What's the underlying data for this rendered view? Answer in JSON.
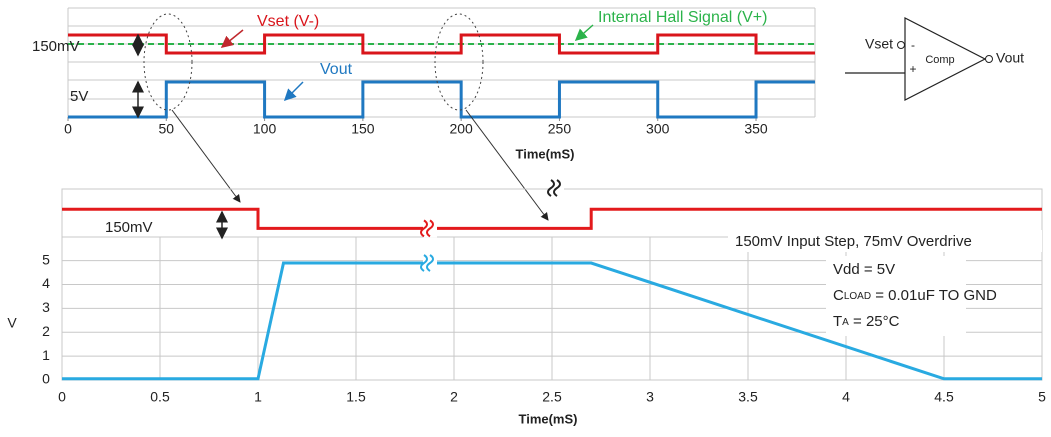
{
  "chart_data": [
    {
      "type": "step",
      "x_label": "Time(mS)",
      "x": [
        0,
        50,
        50,
        100,
        100,
        150,
        150,
        200,
        200,
        250,
        250,
        300,
        300,
        350,
        350,
        380
      ],
      "xlim": [
        0,
        380
      ],
      "xticks": [
        0,
        50,
        100,
        150,
        200,
        250,
        300,
        350
      ],
      "series": [
        {
          "name": "Vset (V-)",
          "color": "#d9151b",
          "values": [
            1,
            1,
            0,
            0,
            1,
            1,
            0,
            0,
            1,
            1,
            0,
            0,
            1,
            1,
            0,
            0
          ]
        },
        {
          "name": "Vout",
          "color": "#1f78c1",
          "values": [
            0,
            0,
            1,
            1,
            0,
            0,
            1,
            1,
            0,
            0,
            1,
            1,
            0,
            0,
            1,
            1
          ]
        }
      ],
      "annotations": [
        {
          "text": "Internal Hall Signal (V+)",
          "color": "#2bb34a"
        },
        {
          "text": "150mV",
          "color": "#222222"
        },
        {
          "text": "5V",
          "color": "#222222"
        }
      ]
    },
    {
      "type": "line",
      "x_label": "Time(mS)",
      "y_label": "V",
      "xlim": [
        0,
        5
      ],
      "xticks": [
        0,
        0.5,
        1,
        1.5,
        2,
        2.5,
        3,
        3.5,
        4,
        4.5,
        5
      ],
      "ylim": [
        0,
        8
      ],
      "yticks": [
        0,
        1,
        2,
        3,
        4,
        5
      ],
      "grid": true,
      "series": [
        {
          "name": "Vset",
          "color": "#e31a1c",
          "x": [
            0,
            1,
            1,
            2.7,
            2.7,
            5
          ],
          "values": [
            7.15,
            7.15,
            6.35,
            6.35,
            7.15,
            7.15
          ]
        },
        {
          "name": "Vout",
          "color": "#29aae1",
          "x": [
            0,
            1,
            1.13,
            2.7,
            4.5,
            5
          ],
          "values": [
            0.05,
            0.05,
            4.9,
            4.9,
            0.05,
            0.05
          ]
        }
      ],
      "annotations": [
        {
          "text": "150mV"
        },
        {
          "text": "150mV Input Step, 75mV Overdrive"
        },
        {
          "text": "Vdd = 5V"
        },
        {
          "parts": [
            "C",
            "LOAD",
            " = 0.01uF TO GND"
          ]
        },
        {
          "parts": [
            "T",
            "A",
            " = 25°C"
          ]
        }
      ]
    }
  ],
  "diagram": {
    "input": "Vset",
    "output": "Vout",
    "block": "Comp",
    "minus": "-",
    "plus": "+"
  }
}
